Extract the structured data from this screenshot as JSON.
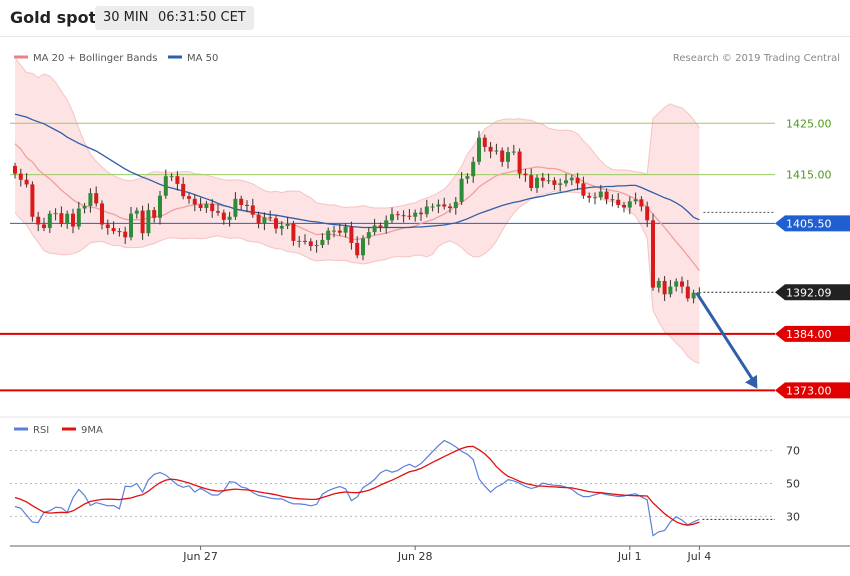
{
  "header": {
    "title": "Gold spot",
    "timeframe": "30 MIN",
    "clock": "06:31:50 CET"
  },
  "watermark": "Research © 2019 Trading Central",
  "legend": {
    "main": [
      {
        "label": "MA 20 + Bollinger Bands",
        "color": "#f08080"
      },
      {
        "label": "MA 50",
        "color": "#2f5fa8"
      }
    ],
    "sub": [
      {
        "label": "RSI",
        "color": "#5b7fdb"
      },
      {
        "label": "9MA",
        "color": "#e01010"
      }
    ]
  },
  "colors": {
    "bull": "#2e8b3a",
    "bear": "#d91a1a",
    "boll_fill": "#fde3e3",
    "ma20": "#f0a0a0",
    "ma50": "#2f5fa8",
    "resistance": "#9ccc65",
    "support": "#e00000",
    "pivot": "#1f5fd1",
    "last": "#222222"
  },
  "chart_data": [
    {
      "type": "candlestick",
      "title": "Gold spot 30 MIN",
      "ylim": [
        1368,
        1442
      ],
      "x_labels": [
        {
          "label": "Jun 27",
          "index": 32
        },
        {
          "label": "Jun 28",
          "index": 69
        },
        {
          "label": "Jul 1",
          "index": 106
        },
        {
          "label": "Jul 4",
          "index": 118
        }
      ],
      "price_levels": [
        {
          "value": 1425.0,
          "label": "1425.00",
          "style": "resistance"
        },
        {
          "value": 1415.0,
          "label": "1415.00",
          "style": "resistance"
        },
        {
          "value": 1405.5,
          "label": "1405.50",
          "style": "pivot"
        },
        {
          "value": 1392.09,
          "label": "1392.09",
          "style": "last"
        },
        {
          "value": 1384.0,
          "label": "1384.00",
          "style": "support"
        },
        {
          "value": 1373.0,
          "label": "1373.00",
          "style": "support"
        }
      ],
      "projection": {
        "from_index": 117,
        "from_price": 1392.0,
        "to_index": 128,
        "to_price": 1373.3
      },
      "closes": [
        1415.2,
        1414.0,
        1413.1,
        1406.8,
        1405.3,
        1404.6,
        1407.4,
        1407.5,
        1405.4,
        1407.4,
        1404.9,
        1408.4,
        1408.9,
        1411.4,
        1409.4,
        1405.3,
        1404.6,
        1404.0,
        1403.9,
        1402.8,
        1407.4,
        1408.0,
        1403.6,
        1408.1,
        1406.6,
        1410.9,
        1414.7,
        1414.7,
        1413.2,
        1410.8,
        1410.3,
        1409.2,
        1408.5,
        1409.3,
        1407.9,
        1407.6,
        1406.2,
        1406.8,
        1410.3,
        1409.1,
        1409.0,
        1407.2,
        1405.5,
        1406.7,
        1406.5,
        1404.5,
        1405.0,
        1405.4,
        1402.1,
        1402.1,
        1402.0,
        1401.1,
        1401.3,
        1402.3,
        1404.1,
        1404.1,
        1403.7,
        1404.9,
        1401.7,
        1399.3,
        1402.6,
        1403.8,
        1405.1,
        1404.8,
        1406.1,
        1407.3,
        1407.1,
        1407.0,
        1406.8,
        1407.6,
        1407.3,
        1408.8,
        1408.8,
        1409.2,
        1408.8,
        1408.5,
        1409.7,
        1414.2,
        1414.7,
        1417.5,
        1422.2,
        1420.4,
        1419.5,
        1419.7,
        1417.5,
        1419.4,
        1419.5,
        1415.2,
        1414.9,
        1412.4,
        1414.4,
        1413.8,
        1413.9,
        1413.0,
        1413.3,
        1413.9,
        1414.4,
        1413.3,
        1410.9,
        1410.5,
        1410.6,
        1411.7,
        1410.2,
        1410.1,
        1409.1,
        1408.6,
        1409.8,
        1410.2,
        1408.8,
        1406.1,
        1393.0,
        1394.3,
        1391.7,
        1393.2,
        1394.2,
        1393.2,
        1390.9,
        1392.0,
        1392.1
      ],
      "ma20": [
        1421.0,
        1420.0,
        1418.3,
        1417.5,
        1416.0,
        1415.0,
        1414.2,
        1413.1,
        1412.0,
        1411.1,
        1410.1,
        1409.4,
        1408.9,
        1408.7,
        1408.5,
        1408.1,
        1407.6,
        1407.3,
        1406.7,
        1406.3,
        1406.2,
        1406.2,
        1406.2,
        1406.6,
        1406.8,
        1406.9,
        1407.3,
        1408.0,
        1408.4,
        1408.6,
        1409.0,
        1409.1,
        1409.3,
        1409.3,
        1409.3,
        1409.1,
        1408.9,
        1408.7,
        1408.3,
        1408.0,
        1407.8,
        1407.5,
        1407.1,
        1406.6,
        1406.1,
        1406.0,
        1405.6,
        1405.4,
        1405.3,
        1404.8,
        1404.3,
        1403.8,
        1403.3,
        1403.4,
        1403.4,
        1403.3,
        1403.1,
        1402.9,
        1402.4,
        1402.4,
        1402.6,
        1402.9,
        1403.2,
        1403.4,
        1403.6,
        1404.0,
        1404.3,
        1404.6,
        1404.8,
        1405.0,
        1405.5,
        1405.9,
        1406.2,
        1406.8,
        1407.3,
        1408.1,
        1408.9,
        1409.6,
        1410.4,
        1411.4,
        1412.6,
        1413.4,
        1414.1,
        1414.8,
        1415.2,
        1415.4,
        1415.7,
        1415.9,
        1416.1,
        1416.3,
        1416.5,
        1416.4,
        1416.2,
        1416.2,
        1415.9,
        1415.4,
        1415.0,
        1414.3,
        1413.6,
        1413.1,
        1412.7,
        1412.3,
        1412.1,
        1411.9,
        1411.7,
        1411.3,
        1410.8,
        1410.3,
        1409.6,
        1408.6,
        1407.3,
        1406.0,
        1404.7,
        1403.3,
        1401.9,
        1400.6,
        1399.2,
        1397.8,
        1396.3
      ],
      "boll_upper": [
        1437.7,
        1436.3,
        1434.9,
        1434.7,
        1433.9,
        1434.6,
        1434.2,
        1433.0,
        1431.2,
        1429.6,
        1427.1,
        1424.0,
        1421.2,
        1419.0,
        1417.6,
        1416.5,
        1415.5,
        1414.8,
        1414.3,
        1413.9,
        1413.8,
        1414.1,
        1414.4,
        1415.2,
        1415.6,
        1415.5,
        1415.5,
        1415.5,
        1415.5,
        1415.6,
        1415.6,
        1415.2,
        1415.1,
        1414.9,
        1414.6,
        1414.3,
        1414.0,
        1413.9,
        1414.0,
        1413.9,
        1413.6,
        1413.2,
        1412.5,
        1411.9,
        1411.6,
        1411.8,
        1411.5,
        1411.8,
        1411.8,
        1411.8,
        1411.1,
        1410.5,
        1409.5,
        1409.3,
        1409.1,
        1409.1,
        1408.8,
        1408.6,
        1408.7,
        1408.7,
        1409.0,
        1408.7,
        1408.5,
        1408.5,
        1408.5,
        1408.6,
        1408.8,
        1409.0,
        1409.3,
        1409.5,
        1410.1,
        1410.5,
        1410.9,
        1411.5,
        1412.1,
        1413.4,
        1414.9,
        1416.6,
        1419.0,
        1420.5,
        1422.2,
        1423.9,
        1424.6,
        1425.4,
        1425.7,
        1425.9,
        1425.8,
        1425.9,
        1425.7,
        1425.6,
        1425.1,
        1424.8,
        1424.0,
        1423.8,
        1423.6,
        1423.7,
        1423.5,
        1423.0,
        1421.6,
        1420.5,
        1419.0,
        1417.7,
        1416.6,
        1416.0,
        1415.9,
        1415.9,
        1415.8,
        1415.6,
        1415.4,
        1415.1,
        1426.0,
        1427.0,
        1428.1,
        1428.8,
        1428.3,
        1428.0,
        1427.0,
        1425.7,
        1424.1
      ],
      "boll_lower": [
        1407.6,
        1406.3,
        1405.2,
        1403.3,
        1401.8,
        1400.2,
        1399.7,
        1399.6,
        1399.4,
        1399.4,
        1399.6,
        1400.0,
        1400.8,
        1401.7,
        1401.9,
        1402.0,
        1401.6,
        1401.2,
        1401.2,
        1400.8,
        1400.8,
        1400.8,
        1400.9,
        1401.3,
        1401.6,
        1402.1,
        1402.5,
        1402.7,
        1402.6,
        1402.5,
        1402.6,
        1402.6,
        1402.5,
        1402.6,
        1402.9,
        1403.1,
        1402.8,
        1402.6,
        1402.7,
        1402.6,
        1402.1,
        1401.9,
        1401.8,
        1401.4,
        1400.9,
        1400.6,
        1400.5,
        1400.0,
        1399.9,
        1399.6,
        1399.1,
        1398.5,
        1398.2,
        1398.3,
        1398.4,
        1398.3,
        1398.3,
        1398.3,
        1397.9,
        1397.8,
        1397.6,
        1397.8,
        1398.1,
        1398.3,
        1398.5,
        1398.9,
        1399.1,
        1399.0,
        1399.0,
        1399.3,
        1399.3,
        1399.0,
        1399.5,
        1401.0,
        1401.7,
        1402.1,
        1401.6,
        1400.8,
        1399.7,
        1399.0,
        1399.0,
        1399.6,
        1400.6,
        1402.0,
        1404.1,
        1406.0,
        1407.5,
        1408.7,
        1409.4,
        1410.3,
        1410.9,
        1411.2,
        1411.4,
        1411.8,
        1411.8,
        1411.6,
        1411.6,
        1411.5,
        1411.4,
        1411.4,
        1410.8,
        1410.5,
        1409.8,
        1409.8,
        1409.4,
        1408.7,
        1407.9,
        1406.9,
        1405.0,
        1402.6,
        1388.6,
        1386.3,
        1384.4,
        1383.4,
        1382.2,
        1381.1,
        1379.6,
        1378.7,
        1378.2
      ],
      "ma50": [
        1426.8,
        1426.5,
        1426.2,
        1425.7,
        1425.3,
        1424.9,
        1424.3,
        1423.7,
        1423.1,
        1422.3,
        1421.7,
        1421.1,
        1420.6,
        1420.1,
        1419.6,
        1418.9,
        1418.2,
        1417.5,
        1416.8,
        1416.1,
        1415.5,
        1415.0,
        1414.5,
        1414.1,
        1413.6,
        1413.1,
        1412.7,
        1412.4,
        1412.1,
        1411.8,
        1411.5,
        1411.1,
        1410.7,
        1410.3,
        1409.9,
        1409.4,
        1409.0,
        1408.7,
        1408.3,
        1408.1,
        1407.9,
        1407.7,
        1407.6,
        1407.4,
        1407.2,
        1407.1,
        1406.9,
        1406.7,
        1406.5,
        1406.3,
        1406.1,
        1405.9,
        1405.8,
        1405.6,
        1405.4,
        1405.3,
        1405.2,
        1405.1,
        1404.9,
        1404.8,
        1404.7,
        1404.7,
        1404.7,
        1404.7,
        1404.7,
        1404.7,
        1404.7,
        1404.7,
        1404.7,
        1404.8,
        1404.8,
        1404.9,
        1405.0,
        1405.1,
        1405.2,
        1405.4,
        1405.6,
        1406.0,
        1406.4,
        1406.9,
        1407.4,
        1407.8,
        1408.2,
        1408.6,
        1409.0,
        1409.3,
        1409.6,
        1409.8,
        1410.1,
        1410.4,
        1410.6,
        1410.8,
        1411.1,
        1411.3,
        1411.5,
        1411.7,
        1412.0,
        1412.2,
        1412.3,
        1412.5,
        1412.6,
        1412.6,
        1412.7,
        1412.7,
        1412.8,
        1412.8,
        1412.9,
        1412.9,
        1412.5,
        1412.0,
        1411.5,
        1411.0,
        1410.5,
        1410.1,
        1409.5,
        1408.8,
        1407.8,
        1406.7,
        1406.2
      ]
    },
    {
      "type": "line",
      "title": "RSI",
      "ylim": [
        15,
        85
      ],
      "yticks": [
        30,
        50,
        70
      ],
      "series": [
        {
          "name": "RSI",
          "values": [
            36.0,
            34.9,
            30.7,
            26.5,
            26.2,
            32.5,
            33.4,
            35.6,
            35.2,
            32.5,
            41.4,
            46.4,
            42.7,
            36.6,
            38.4,
            37.4,
            36.4,
            36.6,
            34.6,
            48.3,
            48.1,
            50.0,
            44.7,
            52.2,
            55.6,
            56.7,
            55.1,
            52.1,
            49.2,
            47.7,
            48.6,
            44.8,
            47.1,
            45.1,
            43.0,
            43.0,
            45.6,
            51.1,
            50.7,
            47.9,
            47.1,
            44.5,
            42.7,
            42.0,
            41.1,
            40.6,
            40.7,
            38.9,
            37.6,
            37.6,
            37.2,
            36.4,
            37.3,
            43.5,
            45.6,
            47.1,
            48.2,
            46.7,
            39.6,
            41.8,
            47.5,
            49.7,
            52.5,
            56.5,
            58.2,
            56.9,
            58.0,
            60.3,
            61.7,
            59.9,
            62.2,
            65.7,
            69.4,
            73.0,
            76.2,
            74.5,
            72.3,
            69.6,
            67.8,
            64.6,
            52.8,
            48.4,
            44.7,
            47.8,
            49.5,
            52.4,
            51.6,
            50.1,
            48.2,
            47.0,
            47.8,
            50.3,
            49.4,
            48.9,
            48.7,
            47.8,
            46.5,
            43.7,
            42.0,
            42.1,
            43.2,
            44.2,
            43.2,
            42.7,
            42.1,
            42.4,
            43.2,
            43.8,
            41.9,
            40.0,
            18.3,
            20.6,
            21.4,
            26.6,
            29.8,
            27.7,
            24.8,
            26.6,
            28.2
          ]
        },
        {
          "name": "9MA",
          "values": [
            41.5,
            40.3,
            38.8,
            36.5,
            34.4,
            32.5,
            32.0,
            32.2,
            32.5,
            32.3,
            33.4,
            35.3,
            37.5,
            39.1,
            39.7,
            40.3,
            40.5,
            40.4,
            40.2,
            40.7,
            41.2,
            42.3,
            43.2,
            45.3,
            48.1,
            50.5,
            52.1,
            52.7,
            52.2,
            51.3,
            50.3,
            49.0,
            47.8,
            46.7,
            45.9,
            45.4,
            45.6,
            46.2,
            46.6,
            46.3,
            46.1,
            45.7,
            44.9,
            44.3,
            43.8,
            43.1,
            42.2,
            41.6,
            41.1,
            40.7,
            40.5,
            40.3,
            40.4,
            41.5,
            42.6,
            43.7,
            44.4,
            44.8,
            44.5,
            44.4,
            45.0,
            45.9,
            47.3,
            49.0,
            50.6,
            52.0,
            53.7,
            55.5,
            57.1,
            57.9,
            59.2,
            61.0,
            62.9,
            64.6,
            66.4,
            68.1,
            69.8,
            71.3,
            72.4,
            72.6,
            70.5,
            68.0,
            64.6,
            60.3,
            57.0,
            54.4,
            52.9,
            51.3,
            50.0,
            49.2,
            48.5,
            48.4,
            48.1,
            47.9,
            47.7,
            47.5,
            47.3,
            46.6,
            45.8,
            45.1,
            44.6,
            44.4,
            44.0,
            43.6,
            43.2,
            42.9,
            42.7,
            42.6,
            42.5,
            42.4,
            38.2,
            34.9,
            31.6,
            29.0,
            26.7,
            25.3,
            24.6,
            25.3,
            26.5
          ]
        }
      ]
    }
  ]
}
